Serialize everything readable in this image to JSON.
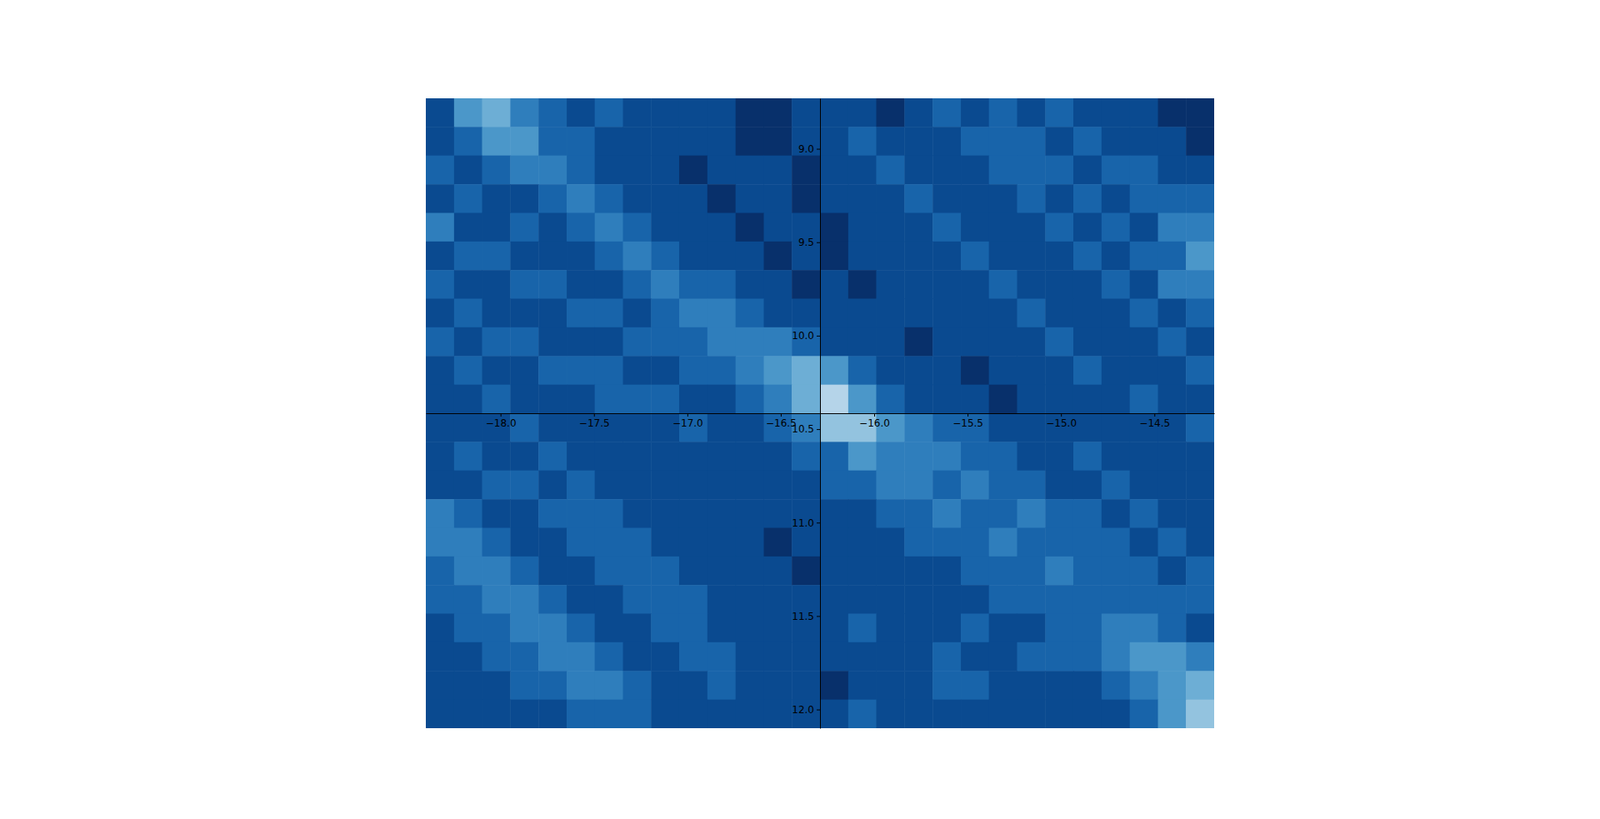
{
  "chart_data": {
    "type": "heatmap",
    "xlim": [
      -18.4,
      -14.18
    ],
    "ylim": [
      12.1,
      8.73
    ],
    "zlim": [
      0,
      1
    ],
    "xticks": [
      {
        "value": -18.0,
        "label": "−18.0"
      },
      {
        "value": -17.5,
        "label": "−17.5"
      },
      {
        "value": -17.0,
        "label": "−17.0"
      },
      {
        "value": -16.5,
        "label": "−16.5"
      },
      {
        "value": -16.0,
        "label": "−16.0"
      },
      {
        "value": -15.5,
        "label": "−15.5"
      },
      {
        "value": -15.0,
        "label": "−15.0"
      },
      {
        "value": -14.5,
        "label": "−14.5"
      }
    ],
    "yticks": [
      {
        "value": 9.0,
        "label": "9.0"
      },
      {
        "value": 9.5,
        "label": "9.5"
      },
      {
        "value": 10.0,
        "label": "10.0"
      },
      {
        "value": 10.5,
        "label": "10.5"
      },
      {
        "value": 11.0,
        "label": "11.0"
      },
      {
        "value": 11.5,
        "label": "11.5"
      },
      {
        "value": 12.0,
        "label": "12.0"
      }
    ],
    "x_edges": [
      -18.4,
      -18.249,
      -18.099,
      -17.948,
      -17.797,
      -17.646,
      -17.496,
      -17.345,
      -17.194,
      -17.044,
      -16.893,
      -16.742,
      -16.591,
      -16.441,
      -16.29,
      -16.139,
      -15.989,
      -15.838,
      -15.687,
      -15.536,
      -15.386,
      -15.235,
      -15.084,
      -14.934,
      -14.783,
      -14.632,
      -14.481,
      -14.331,
      -14.18
    ],
    "y_edges": [
      8.73,
      8.883,
      9.036,
      9.19,
      9.343,
      9.496,
      9.649,
      9.802,
      9.955,
      10.109,
      10.262,
      10.415,
      10.568,
      10.721,
      10.875,
      11.028,
      11.181,
      11.334,
      11.487,
      11.64,
      11.794,
      11.947,
      12.1
    ],
    "cells": [
      [
        0.3,
        0.6,
        0.7,
        0.5,
        0.4,
        0.3,
        0.4,
        0.3,
        0.3,
        0.3,
        0.3,
        0.2,
        0.2,
        0.3,
        0.3,
        0.3,
        0.2,
        0.3,
        0.4,
        0.3,
        0.4,
        0.3,
        0.4,
        0.3,
        0.3,
        0.3,
        0.2,
        0.2
      ],
      [
        0.3,
        0.4,
        0.6,
        0.6,
        0.4,
        0.4,
        0.3,
        0.3,
        0.3,
        0.3,
        0.3,
        0.2,
        0.2,
        0.3,
        0.3,
        0.4,
        0.3,
        0.3,
        0.3,
        0.4,
        0.4,
        0.4,
        0.3,
        0.4,
        0.3,
        0.3,
        0.3,
        0.2
      ],
      [
        0.4,
        0.3,
        0.4,
        0.5,
        0.5,
        0.4,
        0.3,
        0.3,
        0.3,
        0.2,
        0.3,
        0.3,
        0.3,
        0.2,
        0.3,
        0.3,
        0.4,
        0.3,
        0.3,
        0.3,
        0.4,
        0.4,
        0.4,
        0.3,
        0.4,
        0.4,
        0.3,
        0.3
      ],
      [
        0.3,
        0.4,
        0.3,
        0.3,
        0.4,
        0.5,
        0.4,
        0.3,
        0.3,
        0.3,
        0.2,
        0.3,
        0.3,
        0.2,
        0.3,
        0.3,
        0.3,
        0.4,
        0.3,
        0.3,
        0.3,
        0.4,
        0.3,
        0.4,
        0.3,
        0.4,
        0.4,
        0.4
      ],
      [
        0.5,
        0.3,
        0.3,
        0.4,
        0.3,
        0.4,
        0.5,
        0.4,
        0.3,
        0.3,
        0.3,
        0.2,
        0.3,
        0.3,
        0.2,
        0.3,
        0.3,
        0.3,
        0.4,
        0.3,
        0.3,
        0.3,
        0.4,
        0.3,
        0.4,
        0.3,
        0.5,
        0.5
      ],
      [
        0.3,
        0.4,
        0.4,
        0.3,
        0.3,
        0.3,
        0.4,
        0.5,
        0.4,
        0.3,
        0.3,
        0.3,
        0.2,
        0.3,
        0.2,
        0.3,
        0.3,
        0.3,
        0.3,
        0.4,
        0.3,
        0.3,
        0.3,
        0.4,
        0.3,
        0.4,
        0.4,
        0.6
      ],
      [
        0.4,
        0.3,
        0.3,
        0.4,
        0.4,
        0.3,
        0.3,
        0.4,
        0.5,
        0.4,
        0.4,
        0.3,
        0.3,
        0.2,
        0.3,
        0.2,
        0.3,
        0.3,
        0.3,
        0.3,
        0.4,
        0.3,
        0.3,
        0.3,
        0.4,
        0.3,
        0.5,
        0.5
      ],
      [
        0.3,
        0.4,
        0.3,
        0.3,
        0.3,
        0.4,
        0.4,
        0.3,
        0.4,
        0.5,
        0.5,
        0.4,
        0.3,
        0.3,
        0.3,
        0.3,
        0.3,
        0.3,
        0.3,
        0.3,
        0.3,
        0.4,
        0.3,
        0.3,
        0.3,
        0.4,
        0.3,
        0.4
      ],
      [
        0.4,
        0.3,
        0.4,
        0.4,
        0.3,
        0.3,
        0.3,
        0.4,
        0.4,
        0.4,
        0.5,
        0.5,
        0.5,
        0.4,
        0.3,
        0.3,
        0.3,
        0.2,
        0.3,
        0.3,
        0.3,
        0.3,
        0.4,
        0.3,
        0.3,
        0.3,
        0.4,
        0.3
      ],
      [
        0.3,
        0.4,
        0.3,
        0.3,
        0.4,
        0.4,
        0.4,
        0.3,
        0.3,
        0.4,
        0.4,
        0.5,
        0.6,
        0.7,
        0.6,
        0.4,
        0.3,
        0.3,
        0.3,
        0.2,
        0.3,
        0.3,
        0.3,
        0.4,
        0.3,
        0.3,
        0.3,
        0.4
      ],
      [
        0.3,
        0.3,
        0.4,
        0.3,
        0.3,
        0.3,
        0.4,
        0.4,
        0.4,
        0.3,
        0.3,
        0.4,
        0.5,
        0.7,
        0.9,
        0.6,
        0.4,
        0.3,
        0.3,
        0.3,
        0.2,
        0.3,
        0.3,
        0.3,
        0.3,
        0.4,
        0.3,
        0.3
      ],
      [
        0.3,
        0.3,
        0.3,
        0.4,
        0.3,
        0.3,
        0.3,
        0.3,
        0.3,
        0.4,
        0.3,
        0.3,
        0.4,
        0.5,
        0.8,
        0.8,
        0.6,
        0.5,
        0.4,
        0.4,
        0.3,
        0.3,
        0.3,
        0.3,
        0.3,
        0.3,
        0.3,
        0.4
      ],
      [
        0.3,
        0.4,
        0.3,
        0.3,
        0.4,
        0.3,
        0.3,
        0.3,
        0.3,
        0.3,
        0.3,
        0.3,
        0.3,
        0.4,
        0.4,
        0.6,
        0.5,
        0.5,
        0.5,
        0.4,
        0.4,
        0.3,
        0.3,
        0.4,
        0.3,
        0.3,
        0.3,
        0.3
      ],
      [
        0.3,
        0.3,
        0.4,
        0.4,
        0.3,
        0.4,
        0.3,
        0.3,
        0.3,
        0.3,
        0.3,
        0.3,
        0.3,
        0.3,
        0.4,
        0.4,
        0.5,
        0.5,
        0.4,
        0.5,
        0.4,
        0.4,
        0.3,
        0.3,
        0.4,
        0.3,
        0.3,
        0.3
      ],
      [
        0.5,
        0.4,
        0.3,
        0.3,
        0.4,
        0.4,
        0.4,
        0.3,
        0.3,
        0.3,
        0.3,
        0.3,
        0.3,
        0.3,
        0.3,
        0.3,
        0.4,
        0.4,
        0.5,
        0.4,
        0.4,
        0.5,
        0.4,
        0.4,
        0.3,
        0.4,
        0.3,
        0.3
      ],
      [
        0.5,
        0.5,
        0.4,
        0.3,
        0.3,
        0.4,
        0.4,
        0.4,
        0.3,
        0.3,
        0.3,
        0.3,
        0.2,
        0.3,
        0.3,
        0.3,
        0.3,
        0.4,
        0.4,
        0.4,
        0.5,
        0.4,
        0.4,
        0.4,
        0.4,
        0.3,
        0.4,
        0.3
      ],
      [
        0.4,
        0.5,
        0.5,
        0.4,
        0.3,
        0.3,
        0.4,
        0.4,
        0.4,
        0.3,
        0.3,
        0.3,
        0.3,
        0.2,
        0.3,
        0.3,
        0.3,
        0.3,
        0.3,
        0.4,
        0.4,
        0.4,
        0.5,
        0.4,
        0.4,
        0.4,
        0.3,
        0.4
      ],
      [
        0.4,
        0.4,
        0.5,
        0.5,
        0.4,
        0.3,
        0.3,
        0.4,
        0.4,
        0.4,
        0.3,
        0.3,
        0.3,
        0.3,
        0.3,
        0.3,
        0.3,
        0.3,
        0.3,
        0.3,
        0.4,
        0.4,
        0.4,
        0.4,
        0.4,
        0.4,
        0.4,
        0.4
      ],
      [
        0.3,
        0.4,
        0.4,
        0.5,
        0.5,
        0.4,
        0.3,
        0.3,
        0.4,
        0.4,
        0.3,
        0.3,
        0.3,
        0.3,
        0.3,
        0.4,
        0.3,
        0.3,
        0.3,
        0.4,
        0.3,
        0.3,
        0.4,
        0.4,
        0.5,
        0.5,
        0.4,
        0.3
      ],
      [
        0.3,
        0.3,
        0.4,
        0.4,
        0.5,
        0.5,
        0.4,
        0.3,
        0.3,
        0.4,
        0.4,
        0.3,
        0.3,
        0.3,
        0.3,
        0.3,
        0.3,
        0.3,
        0.4,
        0.3,
        0.3,
        0.4,
        0.4,
        0.4,
        0.5,
        0.6,
        0.6,
        0.5
      ],
      [
        0.3,
        0.3,
        0.3,
        0.4,
        0.4,
        0.5,
        0.5,
        0.4,
        0.3,
        0.3,
        0.4,
        0.3,
        0.3,
        0.3,
        0.2,
        0.3,
        0.3,
        0.3,
        0.4,
        0.4,
        0.3,
        0.3,
        0.3,
        0.3,
        0.4,
        0.5,
        0.6,
        0.7
      ],
      [
        0.3,
        0.3,
        0.3,
        0.3,
        0.3,
        0.4,
        0.4,
        0.4,
        0.3,
        0.3,
        0.3,
        0.3,
        0.3,
        0.3,
        0.3,
        0.4,
        0.3,
        0.3,
        0.3,
        0.3,
        0.3,
        0.3,
        0.3,
        0.3,
        0.3,
        0.4,
        0.6,
        0.8
      ]
    ]
  }
}
